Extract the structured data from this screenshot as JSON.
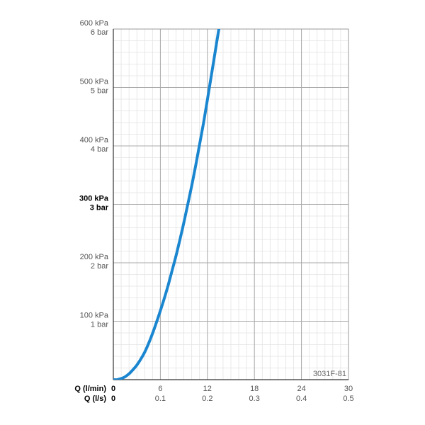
{
  "chart_data": {
    "type": "line",
    "code_label": "3031F-81",
    "x_axes": [
      {
        "title": "Q (l/min)",
        "ticks": [
          "0",
          "6",
          "12",
          "18",
          "24",
          "30"
        ],
        "range": [
          0,
          30
        ]
      },
      {
        "title": "Q (l/s)",
        "ticks": [
          "0",
          "0.1",
          "0.2",
          "0.3",
          "0.4",
          "0.5"
        ],
        "range": [
          0,
          0.5
        ]
      }
    ],
    "y_axis": {
      "range": [
        0,
        600
      ],
      "unit": "kPa",
      "ticks": [
        {
          "value": 100,
          "kpa": "100 kPa",
          "bar": "1 bar",
          "bold": false
        },
        {
          "value": 200,
          "kpa": "200 kPa",
          "bar": "2 bar",
          "bold": false
        },
        {
          "value": 300,
          "kpa": "300 kPa",
          "bar": "3 bar",
          "bold": true
        },
        {
          "value": 400,
          "kpa": "400 kPa",
          "bar": "4 bar",
          "bold": false
        },
        {
          "value": 500,
          "kpa": "500 kPa",
          "bar": "5 bar",
          "bold": false
        },
        {
          "value": 600,
          "kpa": "600 kPa",
          "bar": "6 bar",
          "bold": false
        }
      ]
    },
    "grid": {
      "major": true,
      "minor": true,
      "x_minor_step": 1,
      "y_minor_step": 20
    },
    "series": [
      {
        "color": "#1a86d0",
        "x": [
          0,
          0.5,
          1,
          1.5,
          2,
          2.5,
          3,
          3.5,
          4,
          4.5,
          5,
          5.5,
          6,
          6.5,
          7,
          7.5,
          8,
          8.5,
          9,
          9.5,
          10,
          10.5,
          11,
          11.5,
          12,
          12.5,
          13,
          13.5
        ],
        "y": [
          0,
          0,
          2,
          5,
          10,
          17,
          25,
          35,
          47,
          62,
          79,
          98,
          118,
          139,
          162,
          187,
          212,
          240,
          269,
          300,
          332,
          366,
          402,
          439,
          479,
          520,
          562,
          603
        ]
      }
    ]
  }
}
